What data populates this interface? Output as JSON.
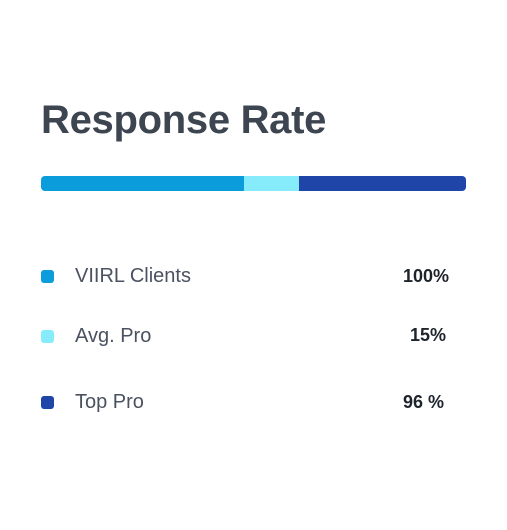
{
  "title": "Response Rate",
  "bar": {
    "segments": [
      {
        "name": "VIIRL Clients",
        "fraction": 0.477,
        "color": "#0b9ddb"
      },
      {
        "name": "Avg. Pro",
        "fraction": 0.13,
        "color": "#86ecfb"
      },
      {
        "name": "Top Pro",
        "fraction": 0.393,
        "color": "#1f45a9"
      }
    ]
  },
  "legend": [
    {
      "label": "VIIRL Clients",
      "value": "100%",
      "color": "#0b9ddb"
    },
    {
      "label": "Avg. Pro",
      "value": "15%",
      "color": "#86ecfb"
    },
    {
      "label": "Top Pro",
      "value": "96 %",
      "color": "#1f45a9"
    }
  ]
}
